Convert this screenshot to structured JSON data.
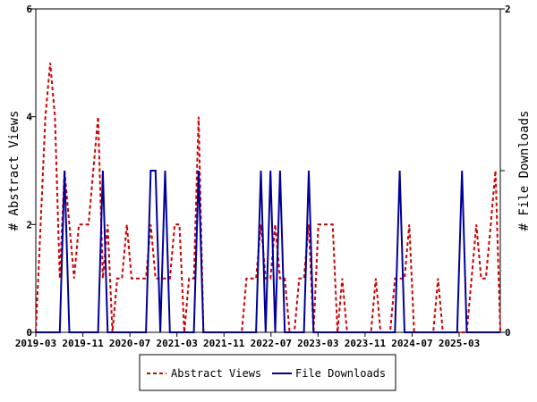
{
  "chart_data": {
    "type": "line",
    "x_range": [
      "2019-03",
      "2025-10"
    ],
    "x_tick_labels": [
      "2019-03",
      "2019-11",
      "2020-07",
      "2021-03",
      "2021-11",
      "2022-07",
      "2023-03",
      "2023-11",
      "2024-07",
      "2025-03"
    ],
    "y_left_label": "# Abstract Views",
    "y_left_range": [
      0,
      6
    ],
    "y_left_ticks": [
      "0",
      "2",
      "4",
      "6"
    ],
    "y_right_label": "# File Downloads",
    "y_right_range": [
      0,
      2
    ],
    "y_right_ticks": [
      "0",
      "1",
      "2"
    ],
    "legend_position": "bottom-center",
    "grid": false,
    "series": [
      {
        "name": "Abstract Views",
        "axis": "left",
        "color": "#cc0000",
        "style": "dashed",
        "values": [
          0,
          2,
          4,
          5,
          4,
          1,
          3,
          2,
          1,
          2,
          2,
          2,
          3,
          4,
          1,
          2,
          0,
          1,
          1,
          2,
          1,
          1,
          1,
          1,
          2,
          1,
          1,
          1,
          1,
          2,
          2,
          0,
          1,
          1,
          4,
          0,
          0,
          0,
          0,
          0,
          0,
          0,
          0,
          0,
          1,
          1,
          1,
          2,
          1,
          1,
          2,
          1,
          1,
          0,
          0,
          1,
          1,
          2,
          0,
          2,
          2,
          2,
          2,
          0,
          1,
          0,
          0,
          0,
          0,
          0,
          0,
          1,
          0,
          0,
          0,
          1,
          1,
          1,
          2,
          0,
          0,
          0,
          0,
          0,
          1,
          0,
          0,
          0,
          0,
          0,
          0,
          1,
          2,
          1,
          1,
          2,
          3,
          0
        ]
      },
      {
        "name": "File Downloads",
        "axis": "right",
        "color": "#000099",
        "style": "solid",
        "values": [
          0,
          0,
          0,
          0,
          0,
          0,
          1,
          0,
          0,
          0,
          0,
          0,
          0,
          0,
          1,
          0,
          0,
          0,
          0,
          0,
          0,
          0,
          0,
          0,
          1,
          1,
          0,
          1,
          0,
          0,
          0,
          0,
          0,
          0,
          1,
          0,
          0,
          0,
          0,
          0,
          0,
          0,
          0,
          0,
          0,
          0,
          0,
          1,
          0,
          1,
          0,
          1,
          0,
          0,
          0,
          0,
          0,
          1,
          0,
          0,
          0,
          0,
          0,
          0,
          0,
          0,
          0,
          0,
          0,
          0,
          0,
          0,
          0,
          0,
          0,
          0,
          1,
          0,
          0,
          0,
          0,
          0,
          0,
          0,
          0,
          0,
          0,
          0,
          0,
          1,
          0,
          0,
          0,
          0,
          0,
          0,
          0,
          0
        ]
      }
    ]
  }
}
